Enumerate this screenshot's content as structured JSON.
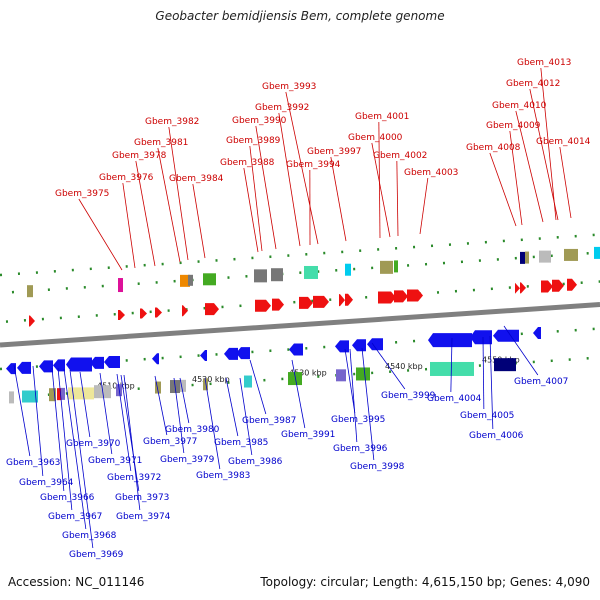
{
  "title": "Geobacter bemidjiensis Bem, complete genome",
  "footer": {
    "accession": "Accession: NC_011146",
    "summary": "Topology: circular; Length: 4,615,150 bp; Genes: 4,090"
  },
  "colors": {
    "forward_label": "#cc0000",
    "reverse_label": "#0000cc",
    "backbone": "#808080",
    "red": "#ee1111",
    "blue": "#1111ee",
    "green": "#44aa22",
    "gray": "#777777",
    "lightgray": "#bbbbbb",
    "olive": "#a09a55",
    "khaki": "#eee79a",
    "teal": "#33cccc",
    "mint": "#44ddaa",
    "orange": "#ee8800",
    "magenta": "#dd1199",
    "purple": "#7766cc",
    "navy": "#000077",
    "cyan": "#00ccee"
  },
  "scale_labels": [
    "4510 kbp",
    "4520 kbp",
    "4530 kbp",
    "4540 kbp",
    "4550 kbp"
  ],
  "forward_genes": [
    "Gbem_3975",
    "Gbem_3976",
    "Gbem_3978",
    "Gbem_3981",
    "Gbem_3982",
    "Gbem_3984",
    "Gbem_3988",
    "Gbem_3989",
    "Gbem_3990",
    "Gbem_3992",
    "Gbem_3993",
    "Gbem_3994",
    "Gbem_3997",
    "Gbem_4000",
    "Gbem_4001",
    "Gbem_4002",
    "Gbem_4003",
    "Gbem_4008",
    "Gbem_4009",
    "Gbem_4010",
    "Gbem_4012",
    "Gbem_4013",
    "Gbem_4014"
  ],
  "reverse_genes": [
    "Gbem_3963",
    "Gbem_3964",
    "Gbem_3966",
    "Gbem_3967",
    "Gbem_3968",
    "Gbem_3969",
    "Gbem_3970",
    "Gbem_3971",
    "Gbem_3972",
    "Gbem_3973",
    "Gbem_3974",
    "Gbem_3977",
    "Gbem_3979",
    "Gbem_3980",
    "Gbem_3983",
    "Gbem_3985",
    "Gbem_3986",
    "Gbem_3987",
    "Gbem_3991",
    "Gbem_3995",
    "Gbem_3996",
    "Gbem_3998",
    "Gbem_3999",
    "Gbem_4004",
    "Gbem_4005",
    "Gbem_4006",
    "Gbem_4007"
  ]
}
